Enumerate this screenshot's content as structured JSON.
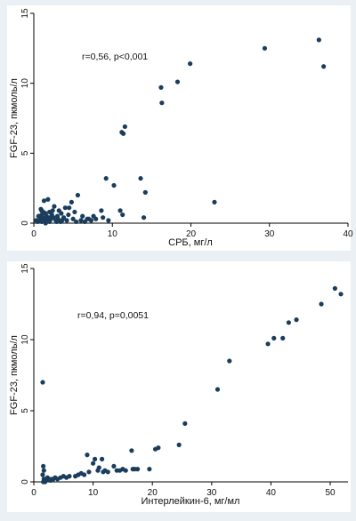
{
  "colors": {
    "background": "#eaf0f3",
    "plot_area": "#ffffff",
    "marker": "#1a3d5c",
    "axis": "#000000"
  },
  "chart_data": [
    {
      "type": "scatter",
      "title": "",
      "xlabel": "СРБ, мг/л",
      "ylabel": "FGF-23, пкмоль/л",
      "annotation": "r=0,56, p<0,001",
      "xlim": [
        0,
        40
      ],
      "ylim": [
        0,
        15
      ],
      "xticks": [
        0,
        10,
        20,
        30,
        40
      ],
      "yticks": [
        0,
        5,
        10,
        15
      ],
      "grid": false,
      "x": [
        0.3,
        0.5,
        0.6,
        0.8,
        0.9,
        1.0,
        1.0,
        1.1,
        1.2,
        1.2,
        1.3,
        1.4,
        1.5,
        1.5,
        1.6,
        1.7,
        1.8,
        1.9,
        2.0,
        2.0,
        2.2,
        2.3,
        2.5,
        2.6,
        2.8,
        3.0,
        3.1,
        3.2,
        3.4,
        3.5,
        3.8,
        4.0,
        4.2,
        4.5,
        4.8,
        5.0,
        5.2,
        5.6,
        6.0,
        6.2,
        6.5,
        7.0,
        7.3,
        7.6,
        7.9,
        8.6,
        8.8,
        9.2,
        9.5,
        10.2,
        11.0,
        11.2,
        11.4,
        11.3,
        11.6,
        13.6,
        14.2,
        16.2,
        16.3,
        18.3,
        19.9,
        23.0,
        29.4,
        36.3,
        36.9,
        1.0,
        1.3,
        1.6,
        2.4,
        2.9,
        3.6,
        4.4,
        5.4,
        6.8,
        14.0
      ],
      "y": [
        0.2,
        0.1,
        0.5,
        0.3,
        1.0,
        0.1,
        0.6,
        0.4,
        0.8,
        0.2,
        1.6,
        0.3,
        0.0,
        0.7,
        0.5,
        0.2,
        1.7,
        0.4,
        0.1,
        0.8,
        0.3,
        0.6,
        0.4,
        1.2,
        0.2,
        0.5,
        0.3,
        0.9,
        0.1,
        0.7,
        0.4,
        1.1,
        0.2,
        1.1,
        1.5,
        0.3,
        0.8,
        2.0,
        0.2,
        0.5,
        0.1,
        0.3,
        0.2,
        0.5,
        0.3,
        0.9,
        0.4,
        3.2,
        0.2,
        2.7,
        0.9,
        6.5,
        6.4,
        0.6,
        6.9,
        3.2,
        2.2,
        9.7,
        8.6,
        10.1,
        11.4,
        1.5,
        12.5,
        13.1,
        11.2,
        0.9,
        0.2,
        0.5,
        0.9,
        0.1,
        0.2,
        0.6,
        0.1,
        0.3,
        0.4
      ]
    },
    {
      "type": "scatter",
      "title": "",
      "xlabel": "Интерлейкин-6, мг/мл",
      "ylabel": "FGF-23, пкмоль/л",
      "annotation": "r=0,94, p=0,0051",
      "xlim": [
        0,
        53
      ],
      "ylim": [
        0,
        15
      ],
      "xticks": [
        0,
        10,
        20,
        30,
        40,
        50
      ],
      "yticks": [
        0,
        5,
        10,
        15
      ],
      "grid": false,
      "x": [
        1.5,
        1.6,
        1.7,
        1.7,
        1.8,
        1.9,
        2.0,
        2.1,
        2.3,
        2.5,
        2.8,
        3.0,
        3.3,
        3.6,
        4.0,
        4.5,
        5.0,
        5.5,
        6.0,
        7.0,
        7.5,
        8.0,
        8.5,
        9.0,
        9.3,
        10.0,
        10.3,
        10.8,
        11.0,
        11.5,
        11.7,
        12.0,
        12.5,
        13.5,
        14.0,
        14.5,
        15.0,
        15.5,
        16.5,
        16.7,
        17.0,
        17.5,
        19.5,
        20.5,
        21.0,
        24.5,
        25.5,
        31.0,
        33.0,
        39.5,
        40.5,
        42.0,
        43.0,
        44.3,
        48.5,
        50.8,
        51.8,
        1.5,
        1.6
      ],
      "y": [
        7.0,
        1.1,
        0.8,
        0.2,
        0.1,
        0.0,
        0.2,
        0.1,
        0.3,
        0.2,
        0.1,
        0.2,
        0.2,
        0.3,
        0.2,
        0.3,
        0.4,
        0.3,
        0.4,
        0.4,
        0.5,
        0.6,
        0.5,
        1.9,
        0.7,
        1.3,
        1.6,
        0.8,
        1.0,
        1.6,
        0.7,
        0.8,
        0.7,
        1.1,
        0.8,
        0.8,
        0.9,
        0.8,
        2.2,
        0.9,
        0.9,
        0.9,
        0.9,
        2.3,
        2.4,
        2.6,
        4.1,
        6.5,
        8.5,
        9.7,
        10.1,
        10.1,
        11.2,
        11.4,
        12.5,
        13.6,
        13.2,
        0.5,
        0.0
      ]
    }
  ]
}
